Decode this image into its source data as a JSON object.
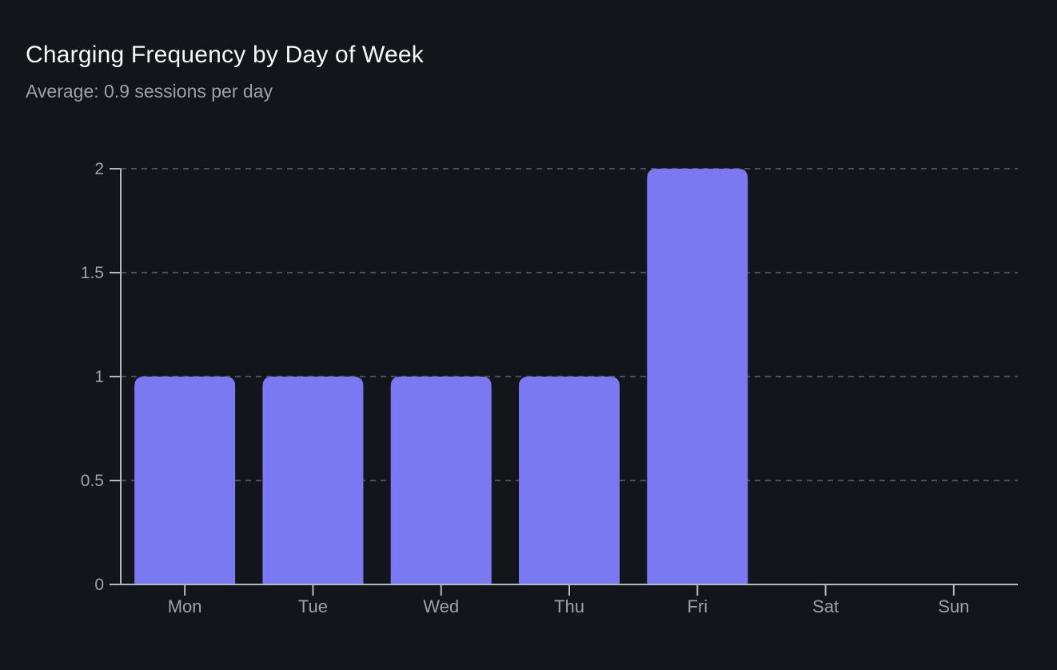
{
  "header": {
    "title": "Charging Frequency by Day of Week",
    "subtitle": "Average: 0.9 sessions per day"
  },
  "chart_data": {
    "type": "bar",
    "title": "Charging Frequency by Day of Week",
    "subtitle": "Average: 0.9 sessions per day",
    "categories": [
      "Mon",
      "Tue",
      "Wed",
      "Thu",
      "Fri",
      "Sat",
      "Sun"
    ],
    "values": [
      1,
      1,
      1,
      1,
      2,
      0,
      0
    ],
    "xlabel": "",
    "ylabel": "",
    "ylim": [
      0,
      2
    ],
    "yticks": [
      0,
      0.5,
      1,
      1.5,
      2
    ],
    "ytick_labels": [
      "0",
      "0.5",
      "1",
      "1.5",
      "2"
    ],
    "grid": "horizontal-dashed",
    "legend": "none",
    "colors": {
      "bar": "#7b79f2",
      "background": "#12161b",
      "title": "#f7f8f9",
      "subtitle": "#9aa1a8",
      "axis_line": "#b4bac1",
      "grid_line": "#4a5057",
      "tick_label": "#9aa3ab"
    }
  }
}
